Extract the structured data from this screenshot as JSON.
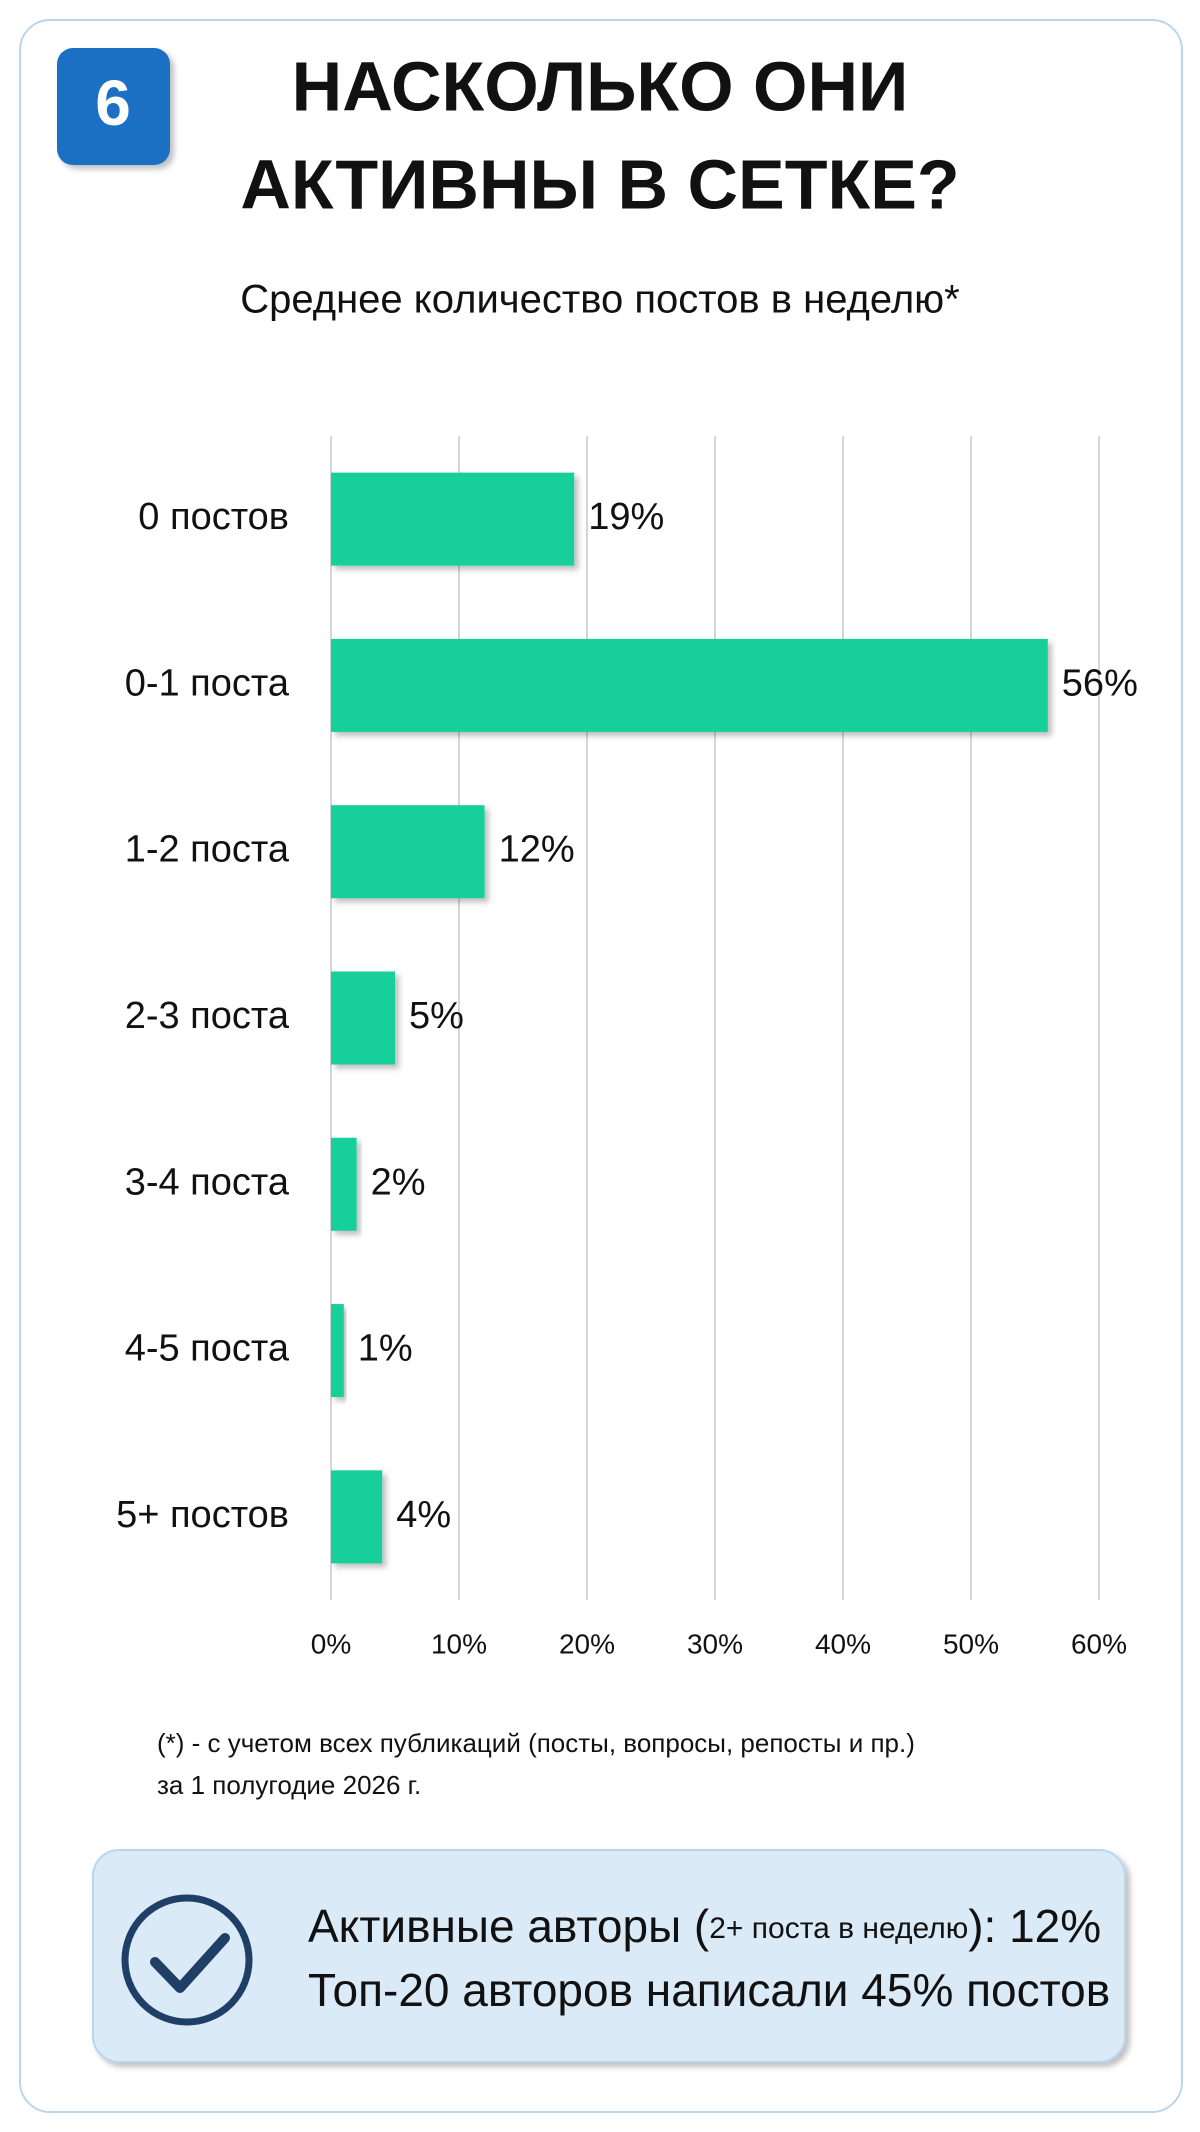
{
  "badge": "6",
  "header": {
    "title_lines": [
      "НАСКОЛЬКО ОНИ",
      "АКТИВНЫ В СЕТКЕ?"
    ]
  },
  "chart_data": {
    "type": "barh",
    "subtitle": "Среднее количество постов в неделю*",
    "categories": [
      "0 постов",
      "0-1 поста",
      "1-2 поста",
      "2-3 поста",
      "3-4 поста",
      "4-5 поста",
      "5+ постов"
    ],
    "values": [
      19,
      56,
      12,
      5,
      2,
      1,
      4
    ],
    "value_labels": [
      "19%",
      "56%",
      "12%",
      "5%",
      "2%",
      "1%",
      "4%"
    ],
    "color": "#12cf9b",
    "xlim": [
      0,
      60
    ],
    "xticks": [
      {
        "value": 0,
        "label": "0%"
      },
      {
        "value": 10,
        "label": "10%"
      },
      {
        "value": 20,
        "label": "20%"
      },
      {
        "value": 30,
        "label": "30%"
      },
      {
        "value": 40,
        "label": "40%"
      },
      {
        "value": 50,
        "label": "50%"
      },
      {
        "value": 60,
        "label": "60%"
      }
    ],
    "grid": true
  },
  "footnote": [
    "(*) - с учетом всех публикаций (посты, вопросы, репосты и пр.)",
    "за 1 полугодие 2026 г."
  ],
  "callout": {
    "line1": [
      "Активные авторы (",
      "2+ поста в неделю",
      "): 12%"
    ],
    "line2": "Топ-20 авторов написали 45% постов"
  }
}
